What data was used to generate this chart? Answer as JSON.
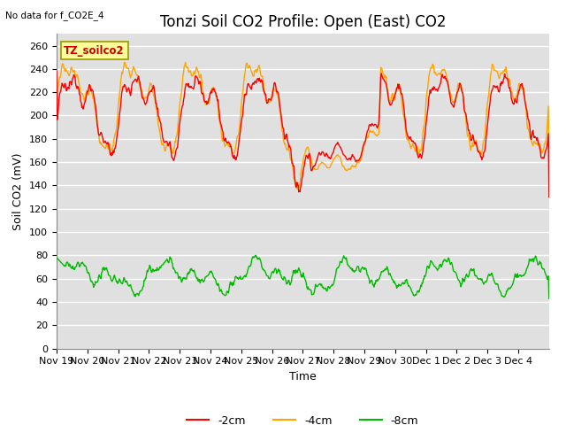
{
  "title": "Tonzi Soil CO2 Profile: Open (East) CO2",
  "subtitle": "No data for f_CO2E_4",
  "ylabel": "Soil CO2 (mV)",
  "xlabel": "Time",
  "legend_label": "TZ_soilco2",
  "series_labels": [
    "-2cm",
    "-4cm",
    "-8cm"
  ],
  "series_colors": [
    "#ff0000",
    "#ffa500",
    "#00bb00"
  ],
  "series_linewidths": [
    1.0,
    1.0,
    1.0
  ],
  "ylim": [
    0,
    270
  ],
  "yticks": [
    0,
    20,
    40,
    60,
    80,
    100,
    120,
    140,
    160,
    180,
    200,
    220,
    240,
    260
  ],
  "background_color": "#ffffff",
  "plot_bg_color": "#e0e0e0",
  "grid_color": "#ffffff",
  "title_fontsize": 12,
  "axis_fontsize": 9,
  "tick_fontsize": 8,
  "n_points": 800,
  "xtick_labels": [
    "Nov 19",
    "Nov 20",
    "Nov 21",
    "Nov 22",
    "Nov 23",
    "Nov 24",
    "Nov 25",
    "Nov 26",
    "Nov 27",
    "Nov 28",
    "Nov 29",
    "Nov 30",
    "Dec 1",
    "Dec 2",
    "Dec 3",
    "Dec 4"
  ],
  "legend_box_color": "#ffff99",
  "legend_box_edge": "#999900",
  "legend_label_color": "#cc0000"
}
